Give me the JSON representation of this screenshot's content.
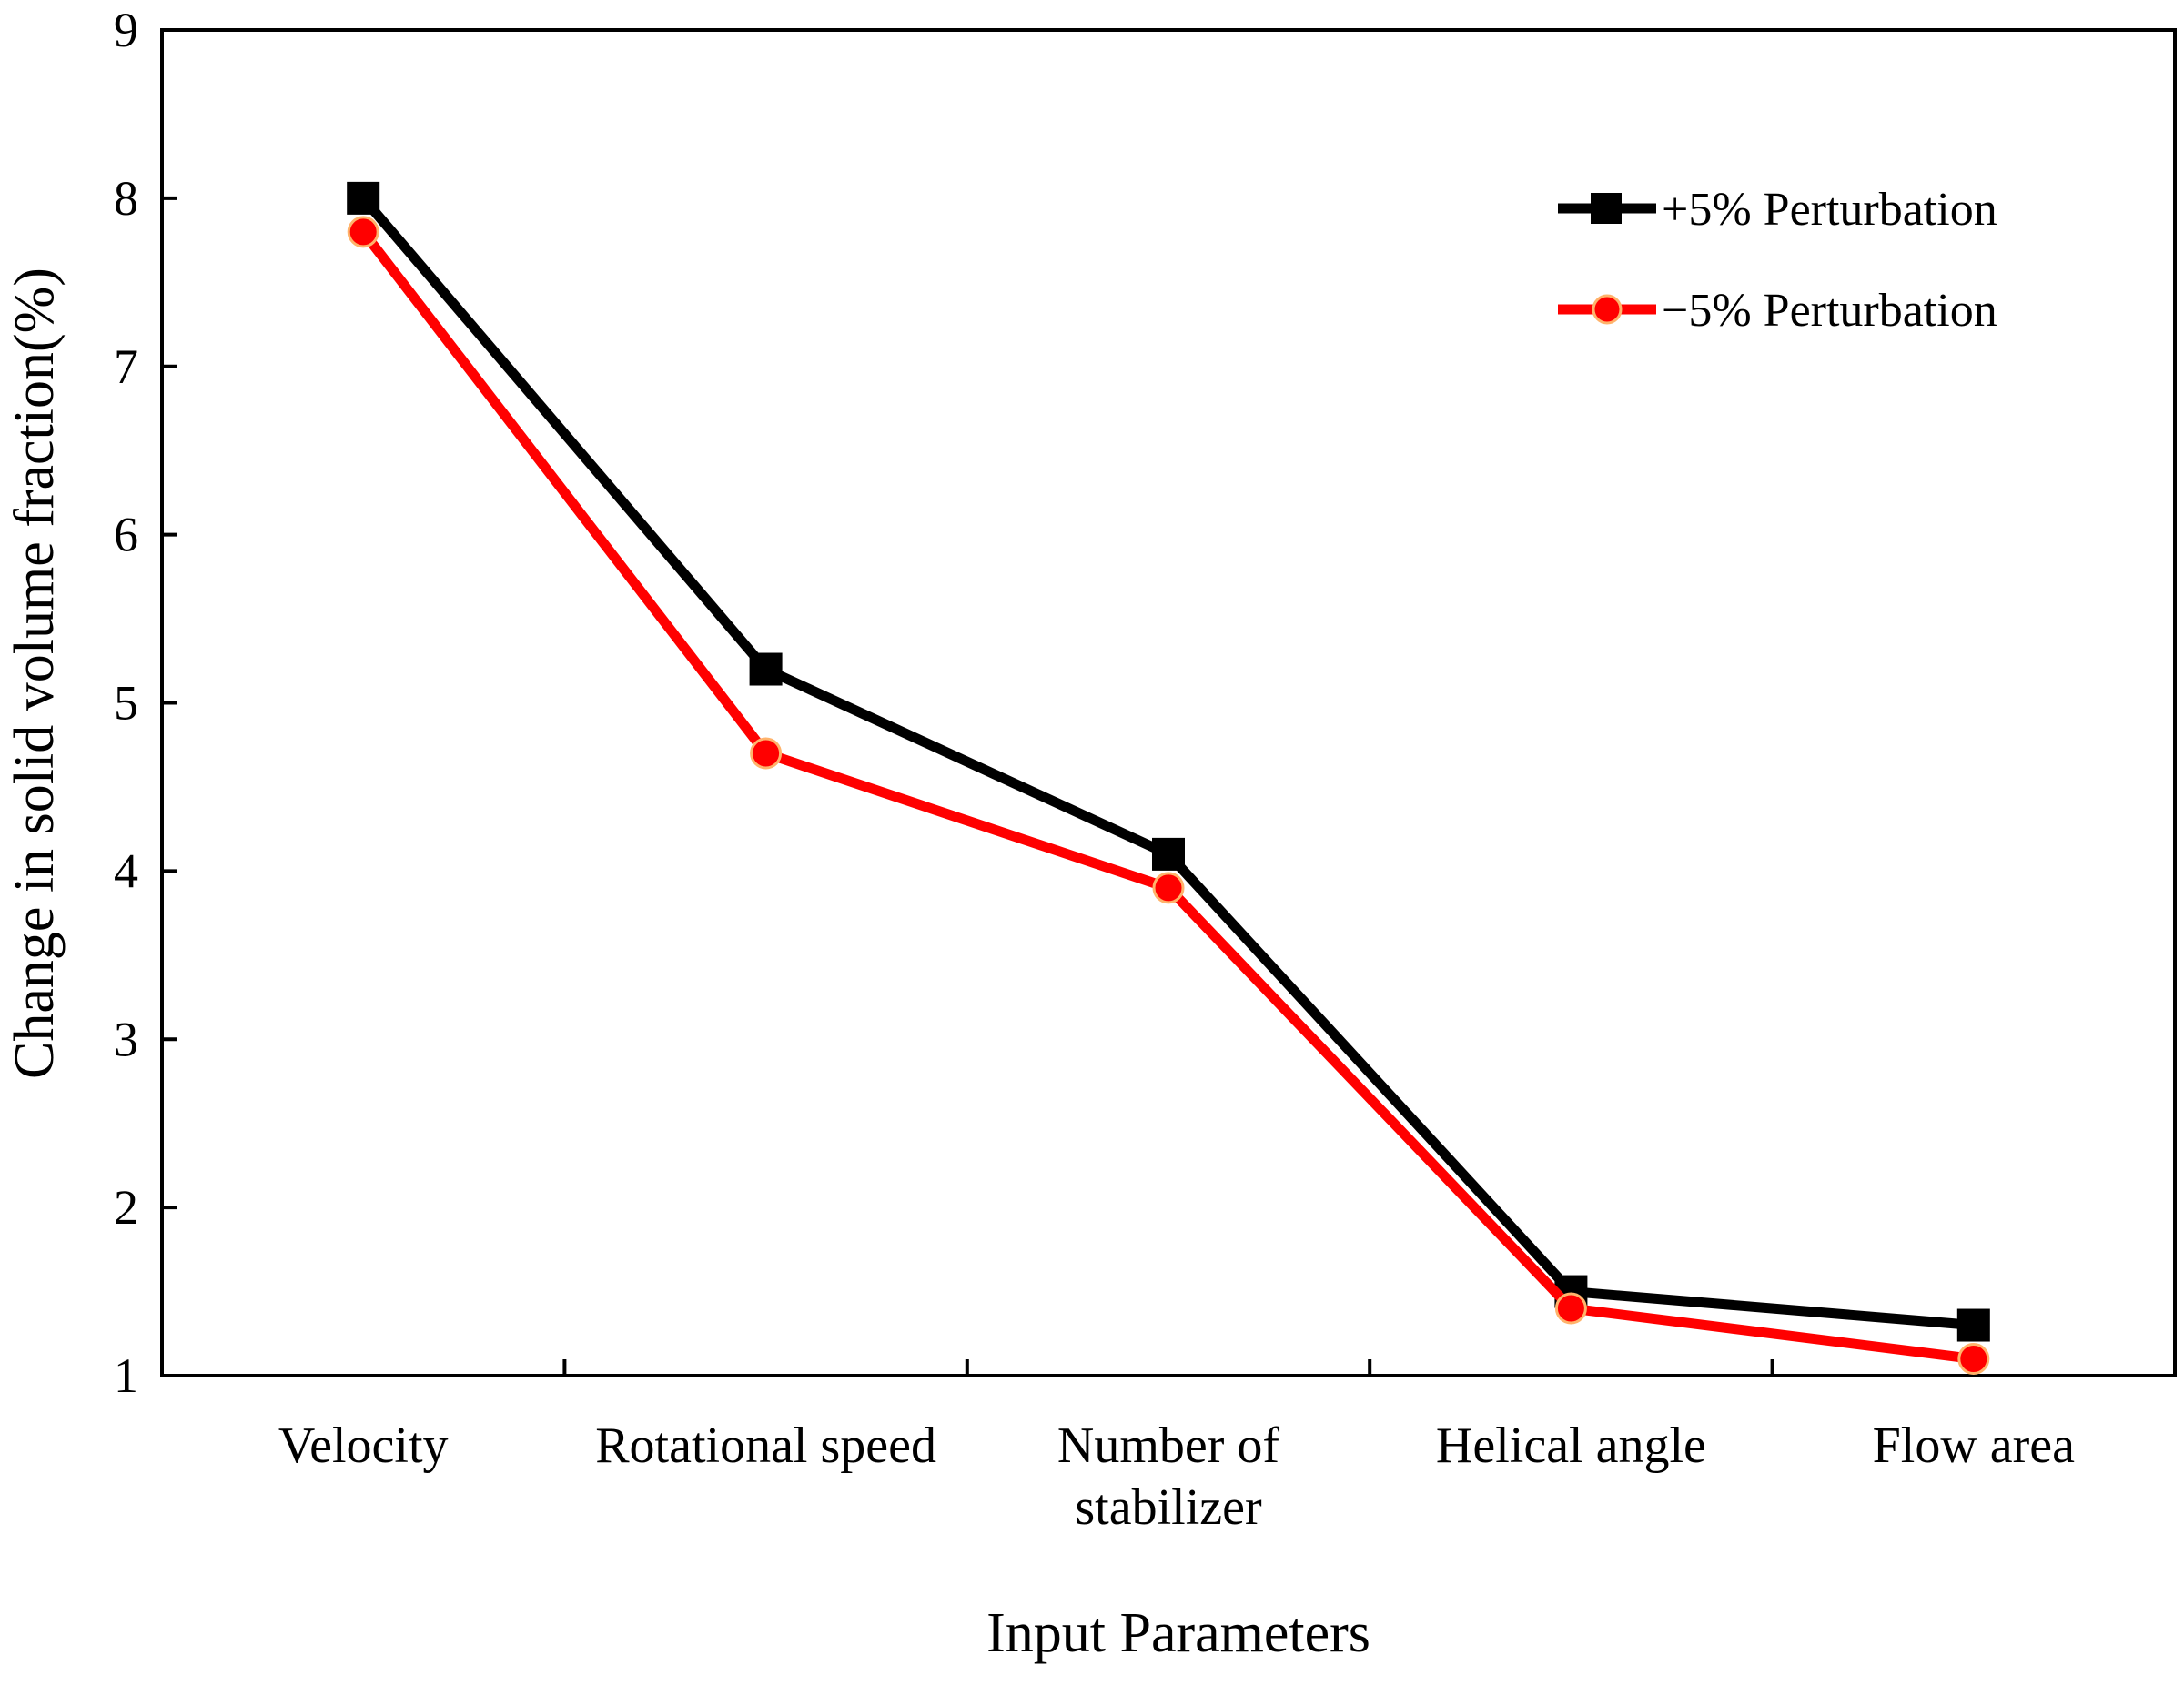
{
  "chart_data": {
    "type": "line",
    "title": "",
    "xlabel": "Input Parameters",
    "ylabel": "Change in solid volume fraction(%)",
    "ylim": [
      1,
      9
    ],
    "yticks": [
      "1",
      "2",
      "3",
      "4",
      "5",
      "6",
      "7",
      "8",
      "9"
    ],
    "categories": [
      [
        "Velocity"
      ],
      [
        "Rotational speed"
      ],
      [
        "Number of",
        "stabilizer"
      ],
      [
        "Helical angle"
      ],
      [
        "Flow area"
      ]
    ],
    "series": [
      {
        "name": "+5% Perturbation",
        "color": "#000000",
        "marker": "square",
        "values": [
          8.0,
          5.2,
          4.1,
          1.5,
          1.3
        ]
      },
      {
        "name": "−5% Perturbation",
        "color": "#ff0000",
        "marker": "circle",
        "values": [
          7.8,
          4.7,
          3.9,
          1.4,
          1.1
        ]
      }
    ],
    "legend_position": "top-right",
    "grid": false
  }
}
